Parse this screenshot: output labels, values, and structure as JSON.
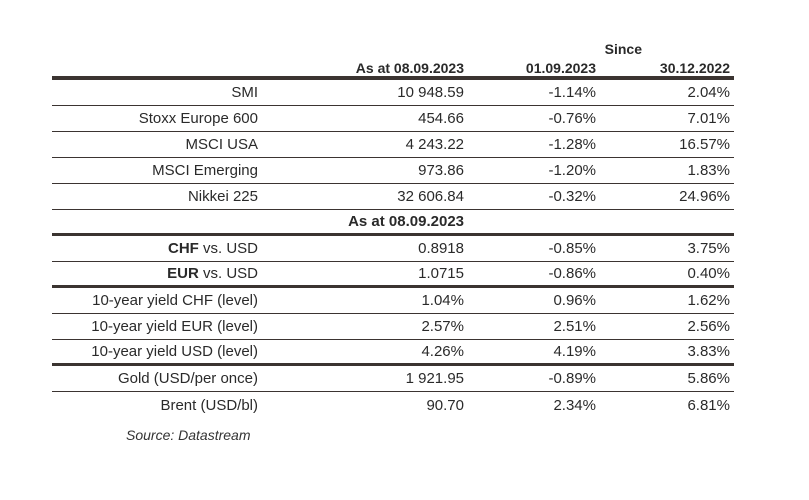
{
  "header": {
    "since_label": "Since",
    "col1": "As at 08.09.2023",
    "col2": "01.09.2023",
    "col3": "30.12.2022"
  },
  "section1": [
    {
      "name": "SMI",
      "value": "10 948.59",
      "since_week": "-1.14%",
      "since_ytd": "2.04%"
    },
    {
      "name": "Stoxx Europe 600",
      "value": "454.66",
      "since_week": "-0.76%",
      "since_ytd": "7.01%"
    },
    {
      "name": "MSCI USA",
      "value": "4 243.22",
      "since_week": "-1.28%",
      "since_ytd": "16.57%"
    },
    {
      "name": "MSCI Emerging",
      "value": "973.86",
      "since_week": "-1.20%",
      "since_ytd": "1.83%"
    },
    {
      "name": "Nikkei 225",
      "value": "32 606.84",
      "since_week": "-0.32%",
      "since_ytd": "24.96%"
    }
  ],
  "subheader": "As at 08.09.2023",
  "fx": [
    {
      "code": "CHF",
      "rest": " vs. USD",
      "value": "0.8918",
      "since_week": "-0.85%",
      "since_ytd": "3.75%"
    },
    {
      "code": "EUR",
      "rest": " vs. USD",
      "value": "1.0715",
      "since_week": "-0.86%",
      "since_ytd": "0.40%"
    }
  ],
  "yields": [
    {
      "name": "10-year yield CHF (level)",
      "value": "1.04%",
      "since_week": "0.96%",
      "since_ytd": "1.62%"
    },
    {
      "name": "10-year yield EUR (level)",
      "value": "2.57%",
      "since_week": "2.51%",
      "since_ytd": "2.56%"
    },
    {
      "name": "10-year yield USD (level)",
      "value": "4.26%",
      "since_week": "4.19%",
      "since_ytd": "3.83%"
    }
  ],
  "commodities": [
    {
      "name": "Gold (USD/per once)",
      "value": "1 921.95",
      "since_week": "-0.89%",
      "since_ytd": "5.86%"
    },
    {
      "name": "Brent (USD/bl)",
      "value": "90.70",
      "since_week": "2.34%",
      "since_ytd": "6.81%"
    }
  ],
  "source": "Source: Datastream"
}
